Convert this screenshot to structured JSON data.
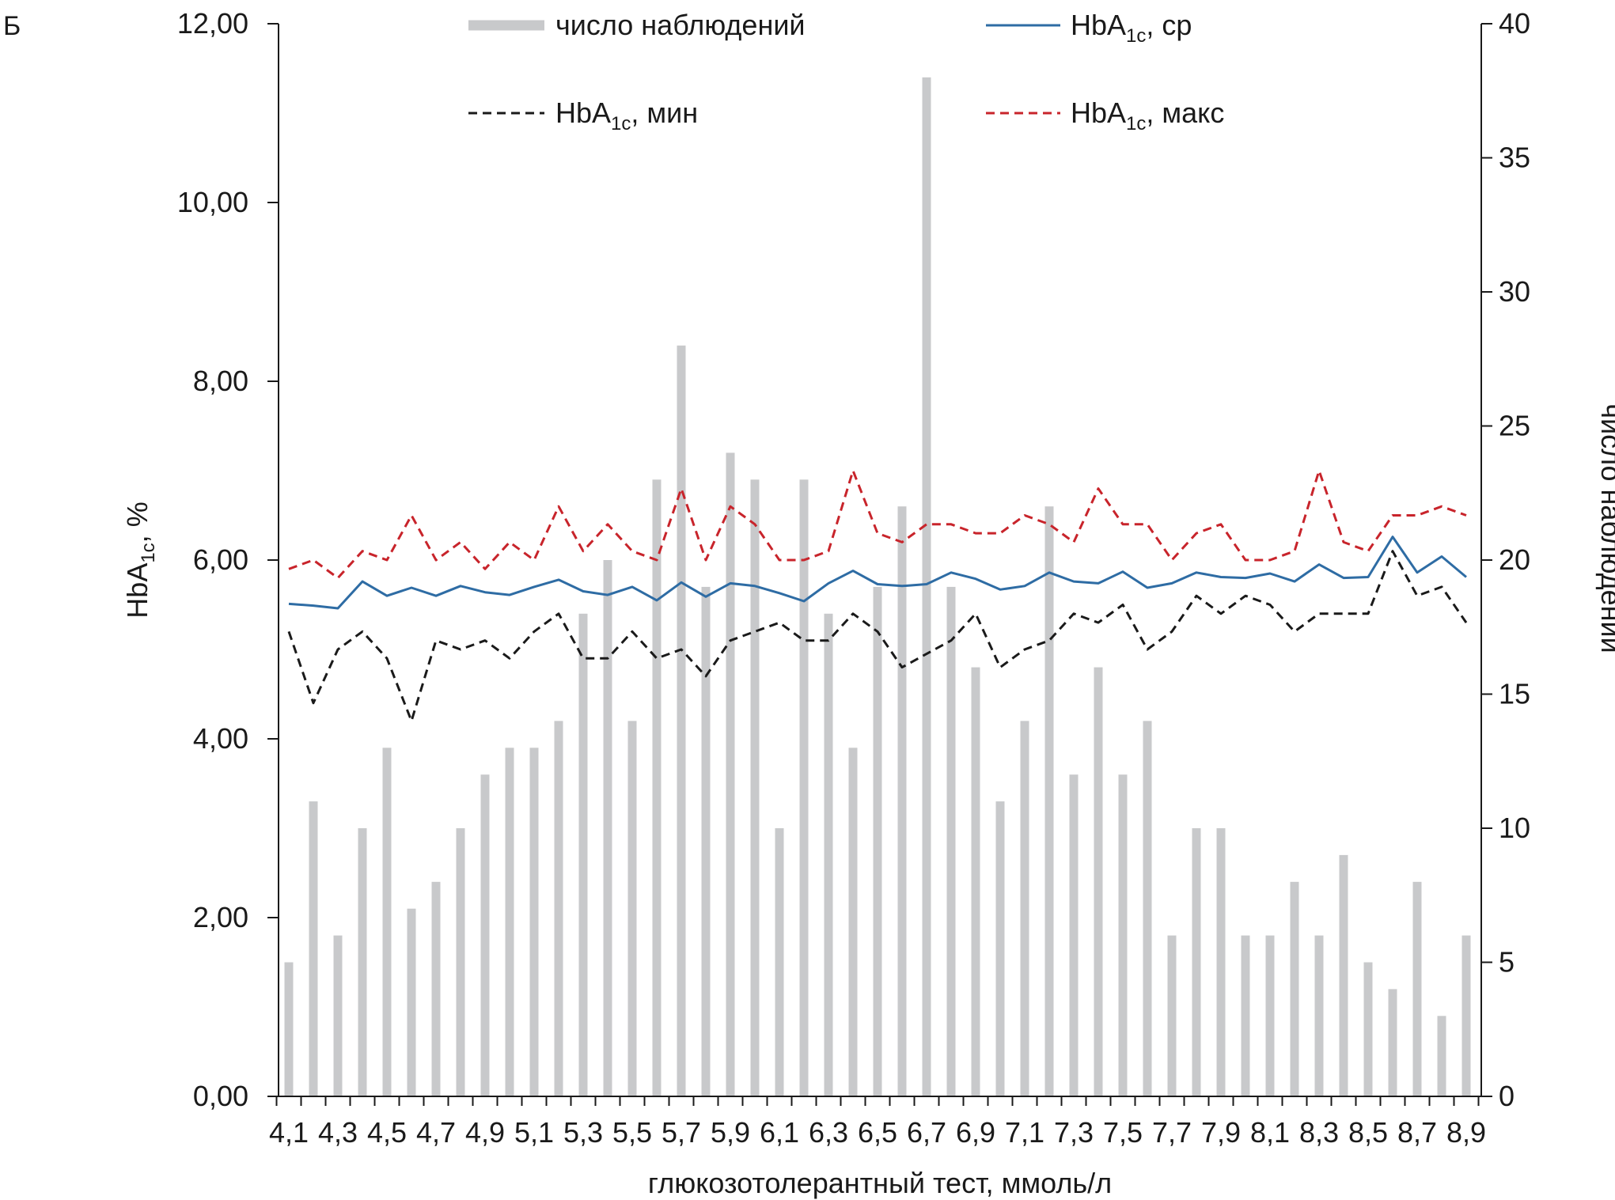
{
  "panel_letter": "Б",
  "chart_data": {
    "type": "bar+line",
    "title": "",
    "xlabel": "глюкозотолерантный тест, ммоль/л",
    "ylabel_left": "HbA1c, %",
    "ylabel_right": "число наблюдений",
    "ylim_left": [
      0,
      12
    ],
    "ylim_right": [
      0,
      40
    ],
    "yticks_left": [
      "0,00",
      "2,00",
      "4,00",
      "6,00",
      "8,00",
      "10,00",
      "12,00"
    ],
    "yticks_right": [
      "0",
      "5",
      "10",
      "15",
      "20",
      "25",
      "30",
      "35",
      "40"
    ],
    "x": [
      4.1,
      4.2,
      4.3,
      4.4,
      4.5,
      4.6,
      4.7,
      4.8,
      4.9,
      5.0,
      5.1,
      5.2,
      5.3,
      5.4,
      5.5,
      5.6,
      5.7,
      5.8,
      5.9,
      6.0,
      6.1,
      6.2,
      6.3,
      6.4,
      6.5,
      6.6,
      6.7,
      6.8,
      6.9,
      7.0,
      7.1,
      7.2,
      7.3,
      7.4,
      7.5,
      7.6,
      7.7,
      7.8,
      7.9,
      8.0,
      8.1,
      8.2,
      8.3,
      8.4,
      8.5,
      8.6,
      8.7,
      8.8,
      8.9
    ],
    "x_tick_labels": [
      "4,1",
      "4,3",
      "4,5",
      "4,7",
      "4,9",
      "5,1",
      "5,3",
      "5,5",
      "5,7",
      "5,9",
      "6,1",
      "6,3",
      "6,5",
      "6,7",
      "6,9",
      "7,1",
      "7,3",
      "7,5",
      "7,7",
      "7,9",
      "8,1",
      "8,3",
      "8,5",
      "8,7",
      "8,9"
    ],
    "bars": {
      "name": "число наблюдений",
      "axis": "right",
      "color": "#c8c9cb",
      "values": [
        5,
        11,
        6,
        10,
        13,
        7,
        8,
        10,
        12,
        13,
        13,
        14,
        18,
        20,
        14,
        23,
        28,
        19,
        24,
        23,
        10,
        23,
        18,
        13,
        19,
        22,
        38,
        19,
        16,
        11,
        14,
        22,
        12,
        16,
        12,
        14,
        6,
        10,
        10,
        6,
        6,
        8,
        6,
        9,
        5,
        4,
        8,
        3,
        6
      ]
    },
    "series": [
      {
        "name": "HbA1c, ср",
        "axis": "left",
        "style": "solid",
        "color": "#2e6ca4",
        "values": [
          5.51,
          5.49,
          5.46,
          5.76,
          5.6,
          5.69,
          5.6,
          5.71,
          5.64,
          5.61,
          5.7,
          5.78,
          5.65,
          5.61,
          5.7,
          5.55,
          5.75,
          5.59,
          5.74,
          5.71,
          5.63,
          5.54,
          5.74,
          5.88,
          5.73,
          5.71,
          5.73,
          5.86,
          5.79,
          5.67,
          5.71,
          5.86,
          5.76,
          5.74,
          5.87,
          5.69,
          5.74,
          5.86,
          5.81,
          5.8,
          5.85,
          5.76,
          5.95,
          5.8,
          5.81,
          6.26,
          5.86,
          6.04,
          5.81
        ]
      },
      {
        "name": "HbA1c, мин",
        "axis": "left",
        "style": "dashed",
        "color": "#1a1a1a",
        "values": [
          5.2,
          4.4,
          5.0,
          5.2,
          4.9,
          4.2,
          5.1,
          5.0,
          5.1,
          4.9,
          5.2,
          5.4,
          4.9,
          4.9,
          5.2,
          4.9,
          5.0,
          4.7,
          5.1,
          5.2,
          5.3,
          5.1,
          5.1,
          5.4,
          5.2,
          4.8,
          4.95,
          5.1,
          5.4,
          4.8,
          5.0,
          5.1,
          5.4,
          5.3,
          5.5,
          5.0,
          5.2,
          5.6,
          5.4,
          5.6,
          5.5,
          5.2,
          5.4,
          5.4,
          5.4,
          6.1,
          5.6,
          5.7,
          5.3
        ]
      },
      {
        "name": "HbA1c, макс",
        "axis": "left",
        "style": "dashed",
        "color": "#c8242b",
        "values": [
          5.9,
          6.0,
          5.8,
          6.1,
          6.0,
          6.5,
          6.0,
          6.2,
          5.9,
          6.2,
          6.0,
          6.6,
          6.1,
          6.4,
          6.1,
          6.0,
          6.8,
          6.0,
          6.6,
          6.4,
          6.0,
          6.0,
          6.1,
          7.0,
          6.3,
          6.2,
          6.4,
          6.4,
          6.3,
          6.3,
          6.5,
          6.4,
          6.2,
          6.8,
          6.4,
          6.4,
          6.0,
          6.3,
          6.4,
          6.0,
          6.0,
          6.1,
          7.0,
          6.2,
          6.1,
          6.5,
          6.5,
          6.6,
          6.5
        ]
      }
    ],
    "legend": [
      {
        "label": "число наблюдений",
        "kind": "bar",
        "color": "#c8c9cb"
      },
      {
        "label": "HbA1c, ср",
        "kind": "solid",
        "color": "#2e6ca4"
      },
      {
        "label": "HbA1c, мин",
        "kind": "dashed",
        "color": "#1a1a1a"
      },
      {
        "label": "HbA1c, макс",
        "kind": "dashed",
        "color": "#c8242b"
      }
    ],
    "legend_placement": "top",
    "grid": false
  }
}
